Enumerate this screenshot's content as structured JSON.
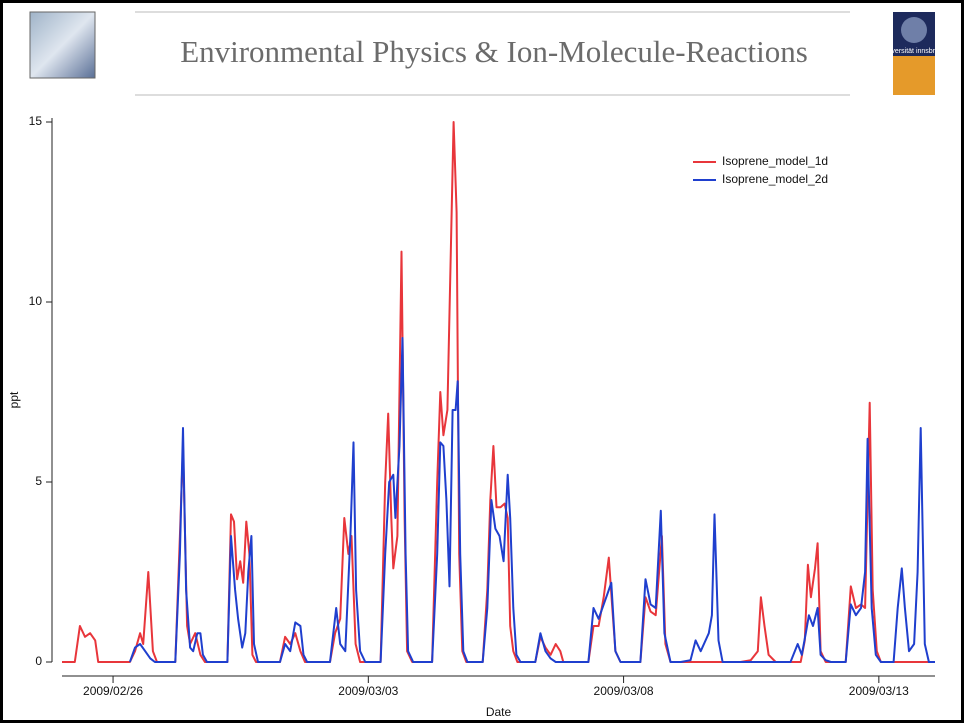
{
  "header": {
    "title": "Environmental Physics & Ion-Molecule-Reactions",
    "logo_text": "universität innsbruck"
  },
  "chart_data": {
    "type": "line",
    "xlabel": "Date",
    "ylabel": "ppt",
    "legend": "upper right",
    "xlim": [
      0,
      17.1
    ],
    "ylim": [
      0,
      15
    ],
    "xticks": [
      {
        "value": 1,
        "label": "2009/02/26"
      },
      {
        "value": 6,
        "label": "2009/03/03"
      },
      {
        "value": 11,
        "label": "2009/03/08"
      },
      {
        "value": 16,
        "label": "2009/03/13"
      }
    ],
    "yticks": [
      0,
      5,
      10,
      15
    ],
    "series": [
      {
        "name": "Isoprene_model_1d",
        "color": "#e8363b",
        "x": [
          0,
          0.25,
          0.35,
          0.45,
          0.55,
          0.65,
          0.71,
          1.33,
          1.43,
          1.53,
          1.59,
          1.69,
          1.78,
          1.86,
          2.22,
          2.31,
          2.37,
          2.45,
          2.51,
          2.61,
          2.71,
          2.8,
          3.24,
          3.31,
          3.37,
          3.43,
          3.49,
          3.55,
          3.61,
          3.67,
          3.73,
          3.8,
          4.27,
          4.37,
          4.47,
          4.57,
          4.67,
          4.76,
          5.25,
          5.35,
          5.45,
          5.53,
          5.61,
          5.67,
          5.75,
          5.84,
          6.24,
          6.33,
          6.39,
          6.45,
          6.49,
          6.57,
          6.65,
          6.71,
          6.76,
          6.86,
          7.25,
          7.35,
          7.41,
          7.47,
          7.55,
          7.61,
          7.67,
          7.73,
          7.78,
          7.84,
          7.92,
          8.24,
          8.33,
          8.39,
          8.45,
          8.51,
          8.59,
          8.67,
          8.73,
          8.78,
          8.84,
          8.92,
          9.27,
          9.37,
          9.47,
          9.57,
          9.67,
          9.76,
          9.82,
          10.31,
          10.41,
          10.51,
          10.61,
          10.71,
          10.78,
          10.84,
          10.94,
          11.33,
          11.43,
          11.53,
          11.63,
          11.75,
          11.82,
          11.92,
          13.29,
          13.49,
          13.63,
          13.69,
          13.76,
          13.84,
          13.98,
          14.47,
          14.55,
          14.61,
          14.67,
          14.75,
          14.8,
          14.86,
          14.96,
          15.35,
          15.45,
          15.55,
          15.65,
          15.73,
          15.82,
          15.88,
          15.96,
          16.04,
          17.1
        ],
        "values": [
          0,
          0,
          1.0,
          0.7,
          0.8,
          0.6,
          0,
          0,
          0.3,
          0.8,
          0.5,
          2.5,
          0.3,
          0,
          0,
          3.5,
          6.0,
          1.0,
          0.5,
          0.8,
          0.2,
          0,
          0,
          4.1,
          3.9,
          2.3,
          2.8,
          2.2,
          3.9,
          3.0,
          0.2,
          0,
          0,
          0.7,
          0.5,
          0.8,
          0.3,
          0,
          0,
          0.8,
          1.2,
          4.0,
          3.0,
          3.5,
          0.5,
          0,
          0,
          5.0,
          6.9,
          4.0,
          2.6,
          3.5,
          11.4,
          4.0,
          0.3,
          0,
          0,
          5.0,
          7.5,
          6.3,
          7.0,
          11.0,
          15.0,
          12.5,
          3.0,
          0.3,
          0,
          0,
          2.0,
          4.5,
          6.0,
          4.3,
          4.3,
          4.4,
          4.0,
          1.0,
          0.3,
          0,
          0,
          0.7,
          0.4,
          0.2,
          0.5,
          0.3,
          0,
          0,
          1.0,
          1.0,
          1.8,
          2.9,
          1.5,
          0.3,
          0,
          0,
          1.8,
          1.4,
          1.3,
          3.5,
          0.5,
          0,
          0,
          0.05,
          0.3,
          1.8,
          1.0,
          0.2,
          0,
          0,
          0.6,
          2.7,
          1.8,
          2.6,
          3.3,
          0.3,
          0,
          0,
          2.1,
          1.5,
          1.6,
          1.5,
          7.2,
          2.0,
          0.3,
          0,
          0
        ]
      },
      {
        "name": "Isoprene_model_2d",
        "color": "#1f3fce",
        "x": [
          1.33,
          1.43,
          1.53,
          1.63,
          1.73,
          1.82,
          2.22,
          2.31,
          2.37,
          2.43,
          2.51,
          2.57,
          2.65,
          2.71,
          2.76,
          2.84,
          3.24,
          3.31,
          3.39,
          3.45,
          3.53,
          3.59,
          3.65,
          3.71,
          3.76,
          3.84,
          4.27,
          4.37,
          4.47,
          4.57,
          4.67,
          4.73,
          4.8,
          5.25,
          5.37,
          5.45,
          5.55,
          5.65,
          5.71,
          5.76,
          5.84,
          5.94,
          6.24,
          6.33,
          6.41,
          6.49,
          6.53,
          6.61,
          6.67,
          6.73,
          6.78,
          6.88,
          7.25,
          7.35,
          7.41,
          7.47,
          7.53,
          7.59,
          7.65,
          7.71,
          7.75,
          7.8,
          7.86,
          7.94,
          8.24,
          8.33,
          8.41,
          8.49,
          8.57,
          8.65,
          8.73,
          8.78,
          8.84,
          8.9,
          8.98,
          9.27,
          9.37,
          9.47,
          9.57,
          9.67,
          10.31,
          10.41,
          10.51,
          10.61,
          10.71,
          10.76,
          10.84,
          10.94,
          11.33,
          11.43,
          11.53,
          11.63,
          11.73,
          11.8,
          11.92,
          12.12,
          12.31,
          12.41,
          12.51,
          12.67,
          12.73,
          12.78,
          12.86,
          12.94,
          14.27,
          14.41,
          14.49,
          14.57,
          14.63,
          14.71,
          14.8,
          14.86,
          14.96,
          15.06,
          15.35,
          15.45,
          15.55,
          15.65,
          15.73,
          15.78,
          15.86,
          15.94,
          16.04,
          16.29,
          16.37,
          16.45,
          16.51,
          16.59,
          16.69,
          16.76,
          16.82,
          16.9,
          16.98,
          17.1
        ],
        "values": [
          0,
          0.4,
          0.5,
          0.3,
          0.1,
          0,
          0,
          3.0,
          6.5,
          2.0,
          0.4,
          0.3,
          0.8,
          0.8,
          0.2,
          0,
          0,
          3.5,
          2.0,
          1.2,
          0.4,
          0.8,
          2.5,
          3.5,
          0.5,
          0,
          0,
          0.5,
          0.3,
          1.1,
          1.0,
          0.2,
          0,
          0,
          1.5,
          0.5,
          0.3,
          3.5,
          6.1,
          2.0,
          0.3,
          0,
          0,
          3.0,
          5.0,
          5.2,
          4.0,
          6.0,
          9.0,
          3.0,
          0.3,
          0,
          0,
          3.0,
          6.1,
          6.0,
          4.5,
          2.1,
          7.0,
          7.0,
          7.8,
          3.0,
          0.3,
          0,
          0,
          1.5,
          4.5,
          3.7,
          3.5,
          2.8,
          5.2,
          4.0,
          1.5,
          0.2,
          0,
          0,
          0.8,
          0.3,
          0.1,
          0,
          0,
          1.5,
          1.2,
          1.6,
          2.0,
          2.2,
          0.3,
          0,
          0,
          2.3,
          1.6,
          1.5,
          4.2,
          0.8,
          0,
          0,
          0.05,
          0.6,
          0.3,
          0.8,
          1.3,
          4.1,
          0.6,
          0,
          0,
          0.5,
          0.2,
          0.8,
          1.3,
          1.0,
          1.5,
          0.2,
          0.05,
          0,
          0,
          1.6,
          1.3,
          1.5,
          2.5,
          6.2,
          1.5,
          0.2,
          0,
          0,
          1.5,
          2.6,
          1.5,
          0.3,
          0.5,
          2.5,
          6.5,
          0.5,
          0,
          0
        ]
      }
    ]
  }
}
